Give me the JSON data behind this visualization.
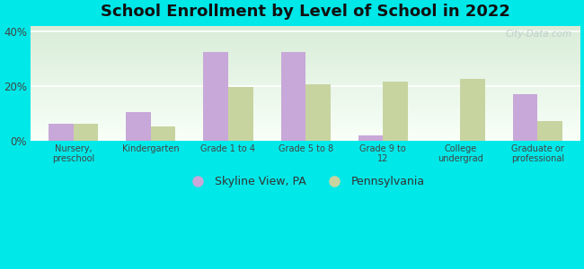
{
  "title": "School Enrollment by Level of School in 2022",
  "categories": [
    "Nursery,\npreschool",
    "Kindergarten",
    "Grade 1 to 4",
    "Grade 5 to 8",
    "Grade 9 to\n12",
    "College\nundergrad",
    "Graduate or\nprofessional"
  ],
  "skyline_values": [
    6.0,
    10.5,
    32.5,
    32.5,
    2.0,
    0.0,
    17.0
  ],
  "pa_values": [
    6.0,
    5.0,
    19.5,
    20.5,
    21.5,
    22.5,
    7.0
  ],
  "skyline_color": "#c8a8d8",
  "pa_color": "#c8d4a0",
  "background_outer": "#00e8e8",
  "background_inner_top": "#d8ecd8",
  "background_inner_bottom": "#f8fff8",
  "ylim": [
    0,
    42
  ],
  "yticks": [
    0,
    20,
    40
  ],
  "ytick_labels": [
    "0%",
    "20%",
    "40%"
  ],
  "legend_label_skyline": "Skyline View, PA",
  "legend_label_pa": "Pennsylvania",
  "title_fontsize": 13,
  "bar_width": 0.32,
  "watermark": "City-Data.com"
}
